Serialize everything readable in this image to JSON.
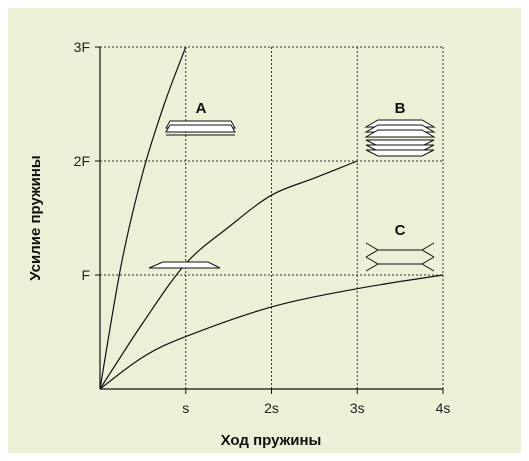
{
  "chart_data": {
    "type": "line",
    "xlabel": "Ход пружины",
    "ylabel": "Усилие пружины",
    "x_ticks": [
      "s",
      "2s",
      "3s",
      "4s"
    ],
    "y_ticks": [
      "F",
      "2F",
      "3F"
    ],
    "xlim": [
      0,
      4
    ],
    "ylim": [
      0,
      3
    ],
    "grid": true,
    "series": [
      {
        "x": [
          0,
          0.25,
          0.5,
          0.75,
          1.0
        ],
        "values": [
          0,
          1.1,
          1.9,
          2.5,
          3.0
        ]
      },
      {
        "x": [
          0,
          0.5,
          1.0,
          1.5,
          2.0,
          2.5,
          3.0
        ],
        "values": [
          0,
          0.58,
          1.1,
          1.42,
          1.7,
          1.85,
          2.0
        ]
      },
      {
        "x": [
          0,
          0.5,
          1.0,
          2.0,
          3.0,
          4.0
        ],
        "values": [
          0,
          0.28,
          0.46,
          0.72,
          0.88,
          1.0
        ]
      }
    ],
    "annotations": [
      {
        "label": "A",
        "icon": "spring-stack-a-icon"
      },
      {
        "label": "B",
        "icon": "spring-stack-b-icon"
      },
      {
        "label": "C",
        "icon": "spring-stack-c-icon"
      }
    ]
  }
}
